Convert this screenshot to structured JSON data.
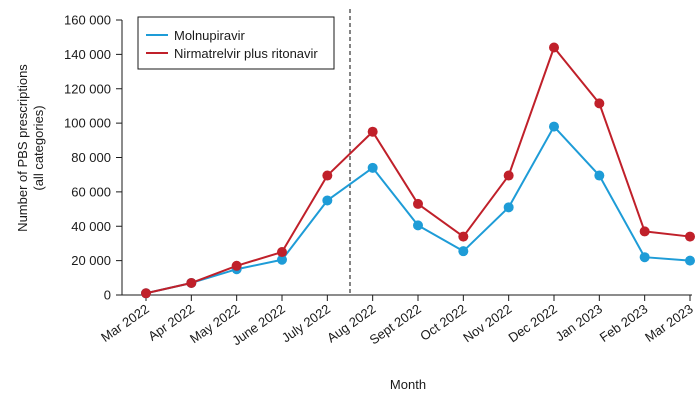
{
  "chart_data": {
    "type": "line",
    "categories": [
      "Mar 2022",
      "Apr 2022",
      "May 2022",
      "June 2022",
      "July 2022",
      "Aug 2022",
      "Sept 2022",
      "Oct 2022",
      "Nov 2022",
      "Dec 2022",
      "Jan 2023",
      "Feb 2023",
      "Mar 2023"
    ],
    "series": [
      {
        "name": "Molnupiravir",
        "color": "#1e9cd7",
        "values": [
          1000,
          7000,
          15000,
          20500,
          55000,
          74000,
          40500,
          25500,
          51000,
          98000,
          69500,
          22000,
          20000
        ]
      },
      {
        "name": "Nirmatrelvir plus ritonavir",
        "color": "#c0202a",
        "values": [
          1000,
          7000,
          17000,
          25000,
          69500,
          95000,
          53000,
          34000,
          69500,
          144000,
          111500,
          37000,
          34000
        ]
      }
    ],
    "xlabel": "Month",
    "ylabel_lines": [
      "Number of PBS prescriptions",
      "(all categories)"
    ],
    "ylim": [
      0,
      160000
    ],
    "yticks": [
      0,
      20000,
      40000,
      60000,
      80000,
      100000,
      120000,
      140000,
      160000
    ],
    "ytick_labels": [
      "0",
      "20 000",
      "40 000",
      "60 000",
      "80 000",
      "100 000",
      "120 000",
      "140 000",
      "160 000"
    ],
    "marker_line": {
      "after_category": "July 2022",
      "style": "dashed",
      "fraction_to_next": 0.5
    },
    "grid": false,
    "legend_position": "top-left"
  }
}
